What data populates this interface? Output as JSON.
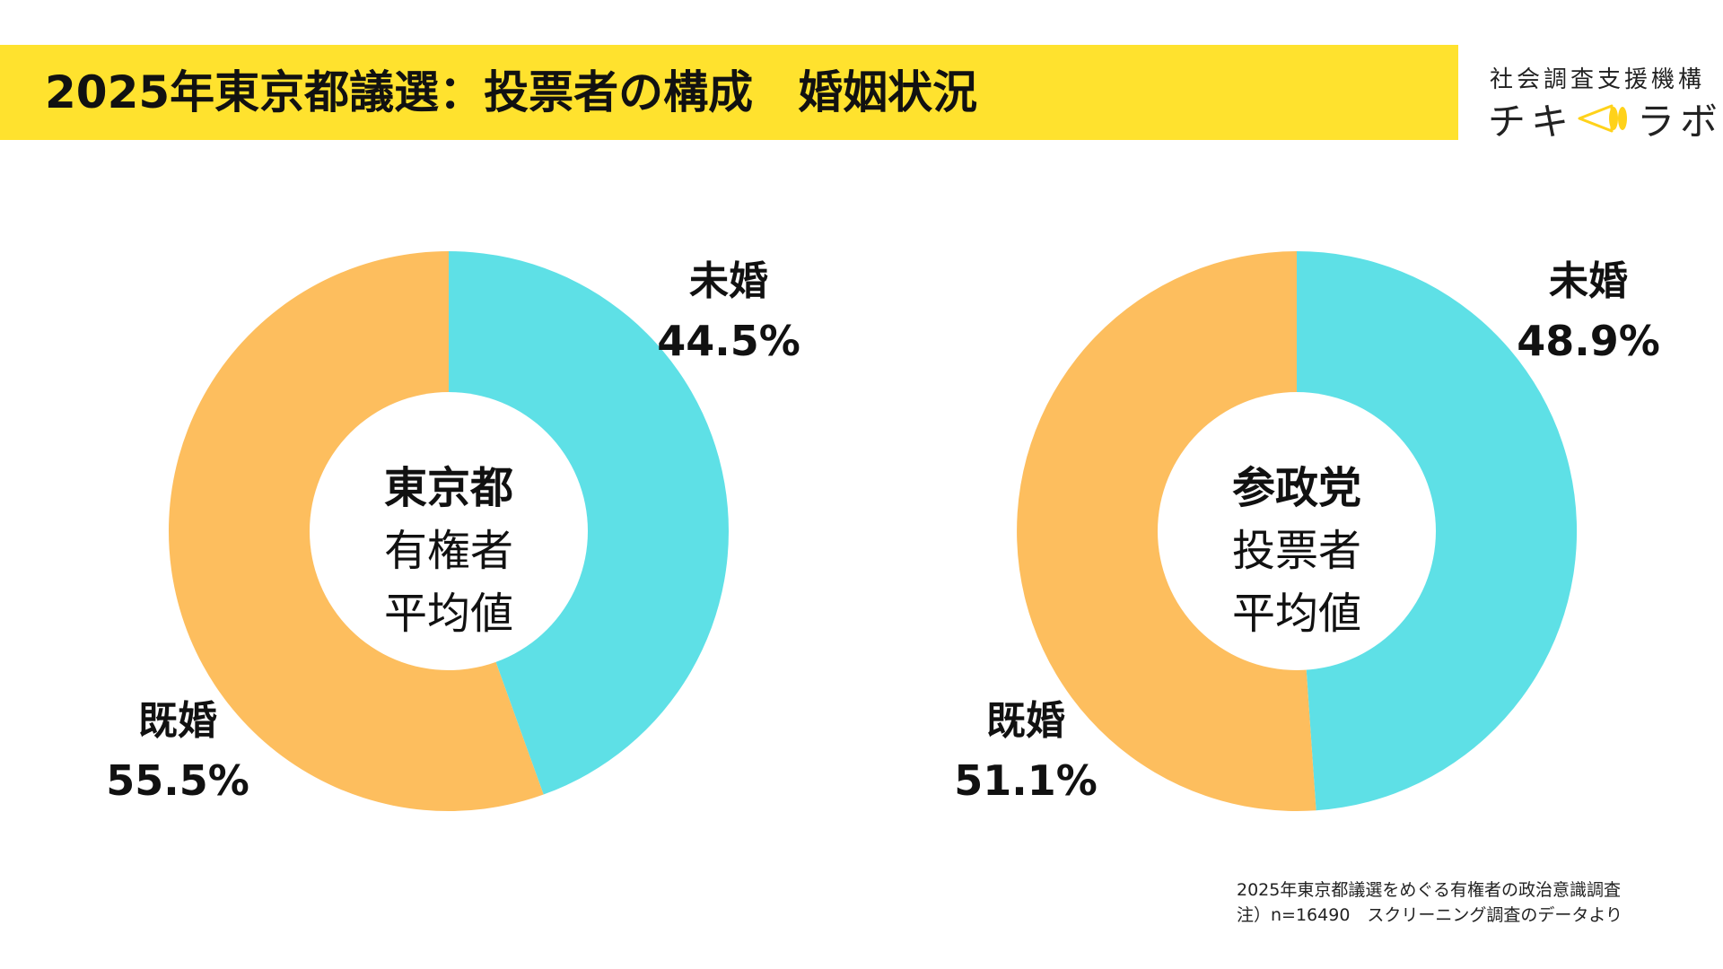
{
  "header": {
    "title": "2025年東京都議選：投票者の構成　婚姻状況",
    "bar_color": "#FFE22E"
  },
  "logo": {
    "org_name": "社会調査支援機構",
    "brand_left": "チキ",
    "brand_right": "ラボ",
    "mark_icon": "megaphone-icon"
  },
  "colors": {
    "unmarried": "#5EE0E6",
    "married": "#FDBE5E"
  },
  "chart_data": [
    {
      "type": "pie",
      "center_label": [
        "東京都",
        "有権者",
        "平均値"
      ],
      "slices": [
        {
          "label": "未婚",
          "value": 44.5,
          "value_label": "44.5%"
        },
        {
          "label": "既婚",
          "value": 55.5,
          "value_label": "55.5%"
        }
      ]
    },
    {
      "type": "pie",
      "center_label": [
        "参政党",
        "投票者",
        "平均値"
      ],
      "slices": [
        {
          "label": "未婚",
          "value": 48.9,
          "value_label": "48.9%"
        },
        {
          "label": "既婚",
          "value": 51.1,
          "value_label": "51.1%"
        }
      ]
    }
  ],
  "footnote": {
    "line1": "2025年東京都議選をめぐる有権者の政治意識調査",
    "line2": "注）n=16490　スクリーニング調査のデータより"
  }
}
